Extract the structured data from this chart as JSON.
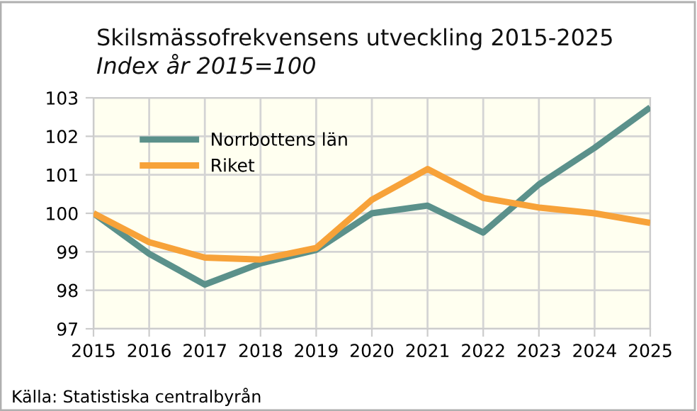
{
  "chart_data": {
    "type": "line",
    "title": "Skilsmässofrekvensens utveckling 2015-2025",
    "subtitle": "Index år 2015=100",
    "x": [
      2015,
      2016,
      2017,
      2018,
      2019,
      2020,
      2021,
      2022,
      2023,
      2024,
      2025
    ],
    "series": [
      {
        "name": "Norrbottens län",
        "color": "#5b918b",
        "values": [
          100,
          98.95,
          98.15,
          98.7,
          99.05,
          100.0,
          100.2,
          99.5,
          100.75,
          101.7,
          102.75
        ]
      },
      {
        "name": "Riket",
        "color": "#f7a239",
        "values": [
          100,
          99.25,
          98.85,
          98.8,
          99.1,
          100.35,
          101.15,
          100.4,
          100.15,
          100.0,
          99.75
        ]
      }
    ],
    "xlim": [
      2015,
      2025
    ],
    "xticks": [
      2015,
      2016,
      2017,
      2018,
      2019,
      2020,
      2021,
      2022,
      2023,
      2024,
      2025
    ],
    "ylim": [
      97,
      103
    ],
    "yticks": [
      97,
      98,
      99,
      100,
      101,
      102,
      103
    ],
    "grid": true,
    "legend": "top left",
    "marker": "none",
    "line_style": "solid",
    "annotations": [
      "Källa: Statistiska centralbyrån"
    ]
  }
}
